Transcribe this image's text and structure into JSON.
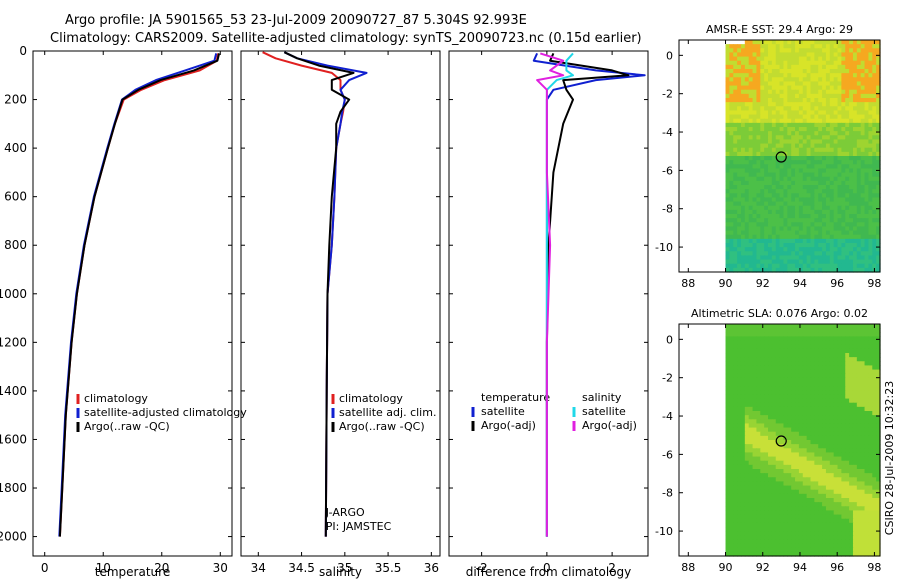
{
  "header": {
    "line1": "Argo profile: JA 5901565_53 23-Jul-2009 20090727_87 5.304S 92.993E",
    "line2": "Climatology: CARS2009. Satellite-adjusted climatology: synTS_20090723.nc (0.15d earlier)"
  },
  "chart_data": [
    {
      "type": "line",
      "name": "temperature",
      "xlabel": "temperature",
      "ylabel": "",
      "xlim": [
        -2,
        32
      ],
      "ylim": [
        2080,
        0
      ],
      "xticks": [
        0,
        10,
        20,
        30
      ],
      "yticks": [
        0,
        200,
        400,
        600,
        800,
        1000,
        1200,
        1400,
        1600,
        1800,
        2000
      ],
      "legend": [
        "climatology",
        "satellite-adjusted climatology",
        "Argo(..raw -QC)"
      ],
      "series": [
        {
          "name": "climatology",
          "color": "#e02020",
          "depth": [
            10,
            40,
            80,
            120,
            160,
            200,
            300,
            400,
            600,
            800,
            1000,
            1200,
            1500,
            1800,
            2000
          ],
          "values": [
            29.6,
            29.4,
            26.5,
            20.5,
            16.5,
            13.5,
            12.0,
            10.8,
            8.5,
            6.8,
            5.5,
            4.6,
            3.6,
            3.0,
            2.6
          ]
        },
        {
          "name": "satellite-adjusted",
          "color": "#1020d0",
          "depth": [
            10,
            40,
            80,
            120,
            160,
            200,
            300,
            400,
            600,
            800,
            1000,
            1200,
            1500,
            1800,
            2000
          ],
          "values": [
            29.3,
            29.0,
            24.0,
            19.0,
            15.5,
            13.2,
            11.9,
            10.7,
            8.4,
            6.7,
            5.4,
            4.5,
            3.5,
            2.9,
            2.5
          ]
        },
        {
          "name": "Argo(..raw -QC)",
          "color": "#000000",
          "depth": [
            10,
            40,
            80,
            120,
            160,
            200,
            300,
            400,
            600,
            800,
            1000,
            1200,
            1500,
            1800,
            2000
          ],
          "values": [
            29.8,
            29.5,
            25.5,
            19.8,
            16.0,
            13.3,
            12.0,
            10.8,
            8.5,
            6.8,
            5.5,
            4.6,
            3.6,
            3.0,
            2.6
          ]
        }
      ]
    },
    {
      "type": "line",
      "name": "salinity",
      "xlabel": "salinity",
      "xlim": [
        33.8,
        36.1
      ],
      "ylim": [
        2080,
        0
      ],
      "xticks": [
        34,
        34.5,
        35,
        35.5,
        36
      ],
      "xticklabels": [
        "34",
        "34.5",
        "35",
        "35.5",
        "36"
      ],
      "legend": [
        "climatology",
        "satellite adj. clim.",
        "Argo(..raw -QC)"
      ],
      "annotation": [
        "J-ARGO",
        "PI: JAMSTEC"
      ],
      "series": [
        {
          "name": "climatology",
          "color": "#e02020",
          "depth": [
            5,
            30,
            60,
            90,
            120,
            160,
            200,
            250,
            300,
            400,
            600,
            800,
            1000,
            1400,
            2000
          ],
          "values": [
            34.05,
            34.2,
            34.5,
            34.85,
            34.95,
            34.95,
            35.0,
            34.98,
            34.95,
            34.9,
            34.88,
            34.85,
            34.8,
            34.79,
            34.78
          ]
        },
        {
          "name": "satellite-adjusted",
          "color": "#1020d0",
          "depth": [
            5,
            30,
            60,
            90,
            120,
            160,
            200,
            250,
            300,
            400,
            600,
            800,
            1000,
            1400,
            2000
          ],
          "values": [
            34.3,
            34.45,
            34.8,
            35.25,
            35.05,
            34.95,
            35.0,
            34.97,
            34.95,
            34.9,
            34.88,
            34.85,
            34.8,
            34.79,
            34.78
          ]
        },
        {
          "name": "Argo(..raw -QC)",
          "color": "#000000",
          "depth": [
            5,
            30,
            60,
            90,
            120,
            160,
            200,
            250,
            300,
            400,
            600,
            800,
            1000,
            1400,
            2000
          ],
          "values": [
            34.3,
            34.45,
            34.7,
            35.1,
            34.85,
            34.85,
            35.05,
            34.95,
            34.9,
            34.9,
            34.85,
            34.82,
            34.8,
            34.79,
            34.78
          ]
        }
      ]
    },
    {
      "type": "line",
      "name": "difference",
      "xlabel": "difference from climatology",
      "xlim": [
        -3,
        3.1
      ],
      "ylim": [
        2080,
        0
      ],
      "xticks": [
        -2,
        0,
        2
      ],
      "legend_headers": [
        "temperature",
        "salinity"
      ],
      "legend": [
        "satellite",
        "Argo(-adj)",
        "satellite",
        "Argo(-adj)"
      ],
      "series": [
        {
          "name": "temperature satellite",
          "color": "#1020d0",
          "depth": [
            10,
            40,
            80,
            100,
            120,
            160,
            200,
            300,
            500,
            800,
            1200,
            2000
          ],
          "values": [
            -0.3,
            -0.4,
            1.5,
            3.0,
            1.5,
            0.2,
            0.0,
            0.0,
            0.0,
            0.0,
            0.0,
            0.0
          ]
        },
        {
          "name": "temperature Argo(-adj)",
          "color": "#000000",
          "depth": [
            10,
            40,
            80,
            100,
            120,
            160,
            200,
            300,
            500,
            800,
            1200,
            2000
          ],
          "values": [
            0.2,
            0.1,
            2.0,
            2.5,
            0.5,
            0.6,
            0.8,
            0.5,
            0.2,
            0.05,
            0.0,
            0.0
          ]
        },
        {
          "name": "salinity satellite",
          "color": "#20d8e8",
          "depth": [
            10,
            40,
            80,
            100,
            120,
            160,
            200,
            300,
            500,
            800,
            1200,
            2000
          ],
          "values": [
            0.8,
            0.6,
            0.6,
            0.8,
            0.3,
            0.0,
            0.0,
            0.0,
            0.0,
            0.0,
            0.0,
            0.0
          ]
        },
        {
          "name": "salinity Argo(-adj)",
          "color": "#e020e0",
          "depth": [
            10,
            40,
            80,
            100,
            120,
            160,
            200,
            300,
            500,
            800,
            1200,
            2000
          ],
          "values": [
            -0.2,
            0.5,
            0.1,
            0.5,
            -0.3,
            0.0,
            0.0,
            0.0,
            0.0,
            0.1,
            0.0,
            0.0
          ]
        }
      ]
    },
    {
      "type": "heatmap",
      "name": "sst-map",
      "title": "AMSR-E SST: 29.4 Argo: 29",
      "xlim": [
        87.5,
        98.3
      ],
      "ylim": [
        -11.3,
        0.8
      ],
      "xticks": [
        88,
        90,
        92,
        94,
        96,
        98
      ],
      "yticks": [
        0,
        -2,
        -4,
        -6,
        -8,
        -10
      ],
      "marker": [
        92.993,
        -5.304
      ]
    },
    {
      "type": "heatmap",
      "name": "sla-map",
      "title": "Altimetric SLA: 0.076 Argo: 0.02",
      "xlim": [
        87.5,
        98.3
      ],
      "ylim": [
        -11.3,
        0.8
      ],
      "xticks": [
        88,
        90,
        92,
        94,
        96,
        98
      ],
      "yticks": [
        0,
        -2,
        -4,
        -6,
        -8,
        -10
      ],
      "marker": [
        92.993,
        -5.304
      ]
    }
  ],
  "credit": "CSIRO 28-Jul-2009 10:32:23"
}
